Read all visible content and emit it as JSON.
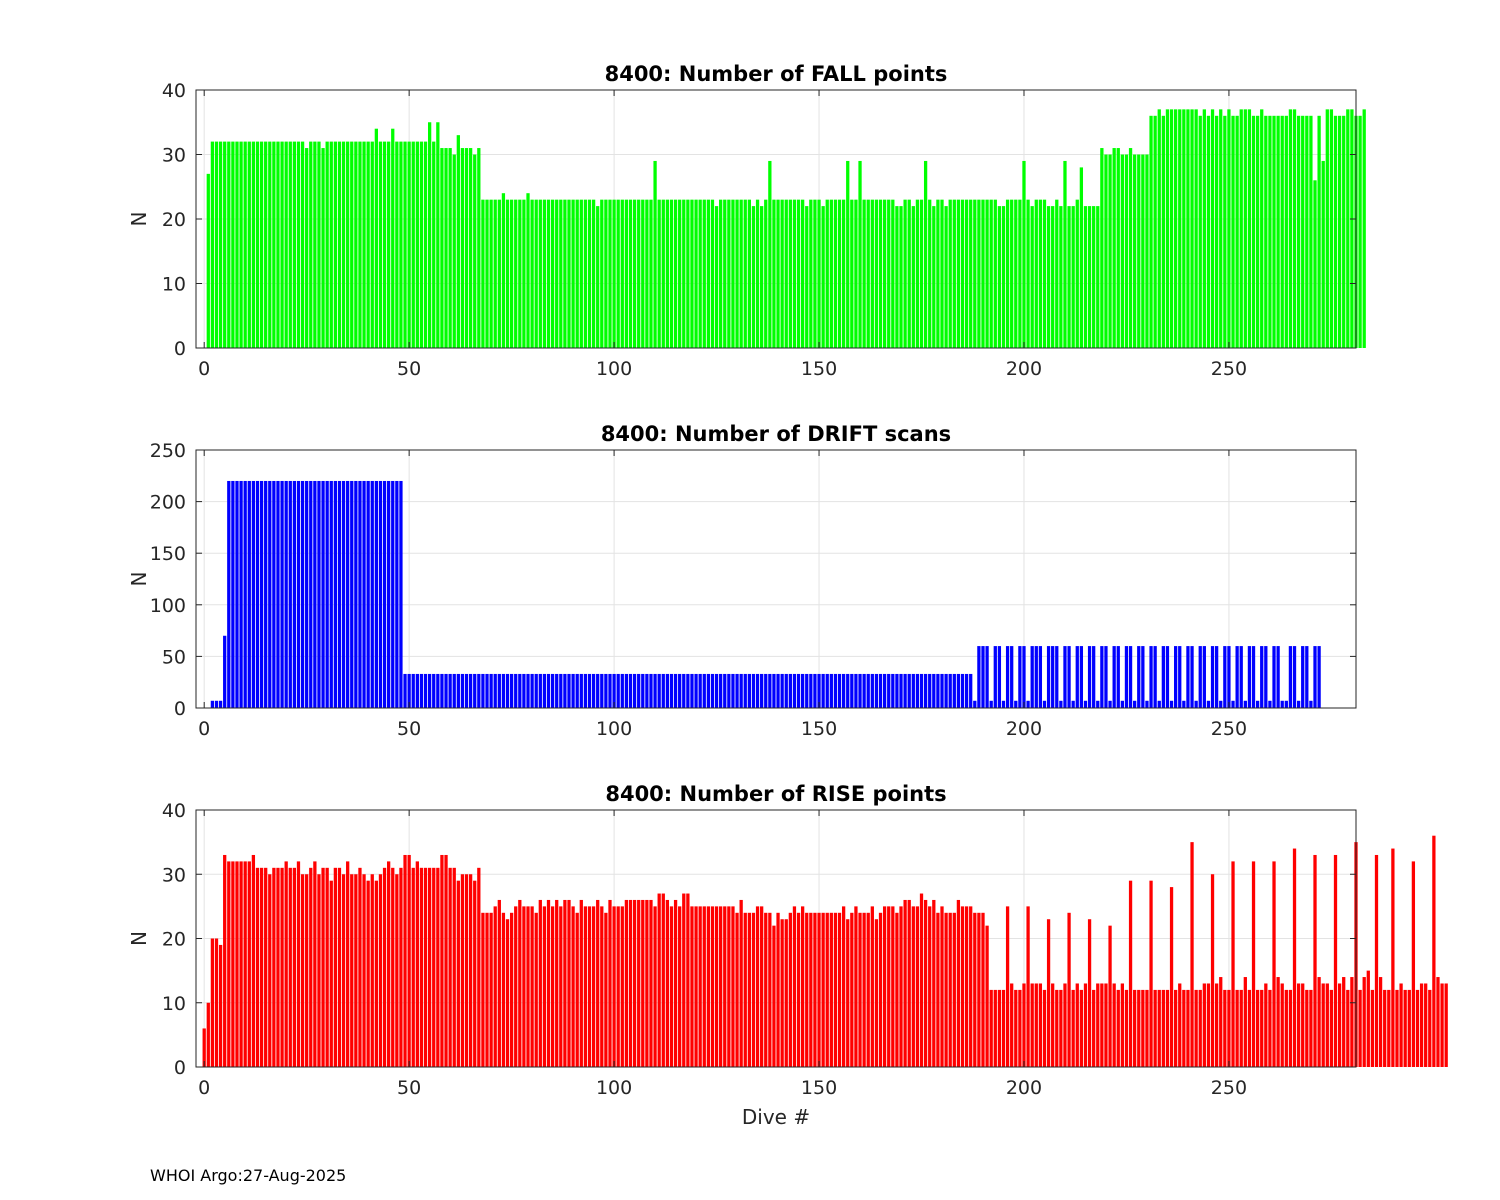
{
  "footer": "WHOI Argo:27-Aug-2025",
  "chart_data": [
    {
      "type": "bar",
      "title": "8400: Number of FALL points",
      "xlabel": "",
      "ylabel": "N",
      "color": "#00ff00",
      "xlim": [
        -2,
        281
      ],
      "ylim": [
        0,
        40
      ],
      "xticks": [
        0,
        50,
        100,
        150,
        200,
        250
      ],
      "yticks": [
        0,
        10,
        20,
        30,
        40
      ],
      "x_start": 1,
      "values": [
        27,
        32,
        32,
        32,
        32,
        32,
        32,
        32,
        32,
        32,
        32,
        32,
        32,
        32,
        32,
        32,
        32,
        32,
        32,
        32,
        32,
        32,
        32,
        32,
        31,
        32,
        32,
        32,
        31,
        32,
        32,
        32,
        32,
        32,
        32,
        32,
        32,
        32,
        32,
        32,
        32,
        34,
        32,
        32,
        32,
        34,
        32,
        32,
        32,
        32,
        32,
        32,
        32,
        32,
        35,
        32,
        35,
        31,
        31,
        31,
        30,
        33,
        31,
        31,
        31,
        30,
        31,
        23,
        23,
        23,
        23,
        23,
        24,
        23,
        23,
        23,
        23,
        23,
        24,
        23,
        23,
        23,
        23,
        23,
        23,
        23,
        23,
        23,
        23,
        23,
        23,
        23,
        23,
        23,
        23,
        22,
        23,
        23,
        23,
        23,
        23,
        23,
        23,
        23,
        23,
        23,
        23,
        23,
        23,
        29,
        23,
        23,
        23,
        23,
        23,
        23,
        23,
        23,
        23,
        23,
        23,
        23,
        23,
        23,
        22,
        23,
        23,
        23,
        23,
        23,
        23,
        23,
        23,
        22,
        23,
        22,
        23,
        29,
        23,
        23,
        23,
        23,
        23,
        23,
        23,
        23,
        22,
        23,
        23,
        23,
        22,
        23,
        23,
        23,
        23,
        23,
        29,
        23,
        23,
        29,
        23,
        23,
        23,
        23,
        23,
        23,
        23,
        23,
        22,
        22,
        23,
        23,
        22,
        23,
        23,
        29,
        23,
        22,
        23,
        23,
        22,
        23,
        23,
        23,
        23,
        23,
        23,
        23,
        23,
        23,
        23,
        23,
        23,
        22,
        22,
        23,
        23,
        23,
        23,
        29,
        23,
        22,
        23,
        23,
        23,
        22,
        22,
        23,
        22,
        29,
        22,
        22,
        23,
        28,
        22,
        22,
        22,
        22,
        31,
        30,
        30,
        31,
        31,
        30,
        30,
        31,
        30,
        30,
        30,
        30,
        36,
        36,
        37,
        36,
        37,
        37,
        37,
        37,
        37,
        37,
        37,
        37,
        36,
        37,
        36,
        37,
        36,
        37,
        36,
        37,
        36,
        36,
        37,
        37,
        37,
        36,
        36,
        37,
        36,
        36,
        36,
        36,
        36,
        36,
        37,
        37,
        36,
        36,
        36,
        36,
        26,
        36,
        29,
        37,
        37,
        36,
        36,
        36,
        37,
        37,
        36,
        36,
        37
      ]
    },
    {
      "type": "bar",
      "title": "8400: Number of DRIFT scans",
      "xlabel": "",
      "ylabel": "N",
      "color": "#0000ff",
      "xlim": [
        -2,
        281
      ],
      "ylim": [
        0,
        250
      ],
      "xticks": [
        0,
        50,
        100,
        150,
        200,
        250
      ],
      "yticks": [
        0,
        50,
        100,
        150,
        200,
        250
      ],
      "x_start": 1,
      "values": [
        0,
        7,
        7,
        7,
        70,
        220,
        220,
        220,
        220,
        220,
        220,
        220,
        220,
        220,
        220,
        220,
        220,
        220,
        220,
        220,
        220,
        220,
        220,
        220,
        220,
        220,
        220,
        220,
        220,
        220,
        220,
        220,
        220,
        220,
        220,
        220,
        220,
        220,
        220,
        220,
        220,
        220,
        220,
        220,
        220,
        220,
        220,
        220,
        33,
        33,
        33,
        33,
        33,
        33,
        33,
        33,
        33,
        33,
        33,
        33,
        33,
        33,
        33,
        33,
        33,
        33,
        33,
        33,
        33,
        33,
        33,
        33,
        33,
        33,
        33,
        33,
        33,
        33,
        33,
        33,
        33,
        33,
        33,
        33,
        33,
        33,
        33,
        33,
        33,
        33,
        33,
        33,
        33,
        33,
        33,
        33,
        33,
        33,
        33,
        33,
        33,
        33,
        33,
        33,
        33,
        33,
        33,
        33,
        33,
        33,
        33,
        33,
        33,
        33,
        33,
        33,
        33,
        33,
        33,
        33,
        33,
        33,
        33,
        33,
        33,
        33,
        33,
        33,
        33,
        33,
        33,
        33,
        33,
        33,
        33,
        33,
        33,
        33,
        33,
        33,
        33,
        33,
        33,
        33,
        33,
        33,
        33,
        33,
        33,
        33,
        33,
        33,
        33,
        33,
        33,
        33,
        33,
        33,
        33,
        33,
        33,
        33,
        33,
        33,
        33,
        33,
        33,
        33,
        33,
        33,
        33,
        33,
        33,
        33,
        33,
        33,
        33,
        33,
        33,
        33,
        33,
        33,
        33,
        33,
        33,
        33,
        33,
        7,
        60,
        60,
        60,
        7,
        60,
        60,
        7,
        60,
        60,
        7,
        60,
        60,
        7,
        60,
        60,
        60,
        7,
        60,
        60,
        60,
        7,
        60,
        60,
        7,
        60,
        60,
        7,
        60,
        60,
        7,
        60,
        60,
        7,
        60,
        60,
        7,
        60,
        60,
        7,
        60,
        60,
        7,
        60,
        60,
        7,
        60,
        60,
        7,
        60,
        60,
        7,
        60,
        60,
        7,
        60,
        60,
        7,
        60,
        60,
        7,
        60,
        60,
        7,
        60,
        60,
        7,
        60,
        60,
        7,
        60,
        60,
        7,
        60,
        60,
        7,
        7,
        60,
        60,
        7,
        60,
        60,
        7,
        60,
        60
      ]
    },
    {
      "type": "bar",
      "title": "8400: Number of RISE points",
      "xlabel": "Dive #",
      "ylabel": "N",
      "color": "#ff0000",
      "xlim": [
        -2,
        281
      ],
      "ylim": [
        0,
        40
      ],
      "xticks": [
        0,
        50,
        100,
        150,
        200,
        250
      ],
      "yticks": [
        0,
        10,
        20,
        30,
        40
      ],
      "x_start": 0,
      "values": [
        6,
        10,
        20,
        20,
        19,
        33,
        32,
        32,
        32,
        32,
        32,
        32,
        33,
        31,
        31,
        31,
        30,
        31,
        31,
        31,
        32,
        31,
        31,
        32,
        30,
        30,
        31,
        32,
        30,
        31,
        31,
        29,
        31,
        31,
        30,
        32,
        30,
        30,
        31,
        30,
        29,
        30,
        29,
        30,
        31,
        32,
        31,
        30,
        31,
        33,
        33,
        31,
        32,
        31,
        31,
        31,
        31,
        31,
        33,
        33,
        31,
        31,
        29,
        30,
        30,
        30,
        29,
        31,
        24,
        24,
        24,
        25,
        26,
        24,
        23,
        24,
        25,
        26,
        25,
        25,
        25,
        24,
        26,
        25,
        26,
        25,
        26,
        25,
        26,
        26,
        25,
        24,
        26,
        25,
        25,
        25,
        26,
        25,
        24,
        26,
        25,
        25,
        25,
        26,
        26,
        26,
        26,
        26,
        26,
        26,
        25,
        27,
        27,
        26,
        25,
        26,
        25,
        27,
        27,
        25,
        25,
        25,
        25,
        25,
        25,
        25,
        25,
        25,
        25,
        25,
        24,
        26,
        24,
        24,
        24,
        25,
        25,
        24,
        24,
        22,
        24,
        23,
        23,
        24,
        25,
        24,
        25,
        24,
        24,
        24,
        24,
        24,
        24,
        24,
        24,
        24,
        25,
        23,
        24,
        25,
        24,
        24,
        24,
        25,
        23,
        24,
        25,
        25,
        25,
        24,
        25,
        26,
        26,
        25,
        25,
        27,
        26,
        25,
        26,
        24,
        25,
        24,
        24,
        24,
        26,
        25,
        25,
        25,
        24,
        24,
        24,
        22,
        12,
        12,
        12,
        12,
        25,
        13,
        12,
        12,
        13,
        25,
        13,
        13,
        13,
        12,
        23,
        13,
        12,
        12,
        13,
        24,
        12,
        13,
        12,
        13,
        23,
        12,
        13,
        13,
        13,
        22,
        13,
        12,
        13,
        12,
        29,
        12,
        12,
        12,
        12,
        29,
        12,
        12,
        12,
        12,
        28,
        12,
        13,
        12,
        12,
        35,
        12,
        12,
        13,
        13,
        30,
        13,
        14,
        12,
        12,
        32,
        12,
        12,
        14,
        12,
        32,
        12,
        12,
        13,
        12,
        32,
        14,
        13,
        12,
        12,
        34,
        13,
        13,
        12,
        12,
        33,
        14,
        13,
        13,
        12,
        33,
        13,
        14,
        12,
        14,
        35,
        12,
        14,
        15,
        12,
        33,
        14,
        12,
        12,
        34,
        12,
        13,
        12,
        12,
        32,
        12,
        13,
        13,
        12,
        36,
        14,
        13,
        13
      ]
    }
  ]
}
